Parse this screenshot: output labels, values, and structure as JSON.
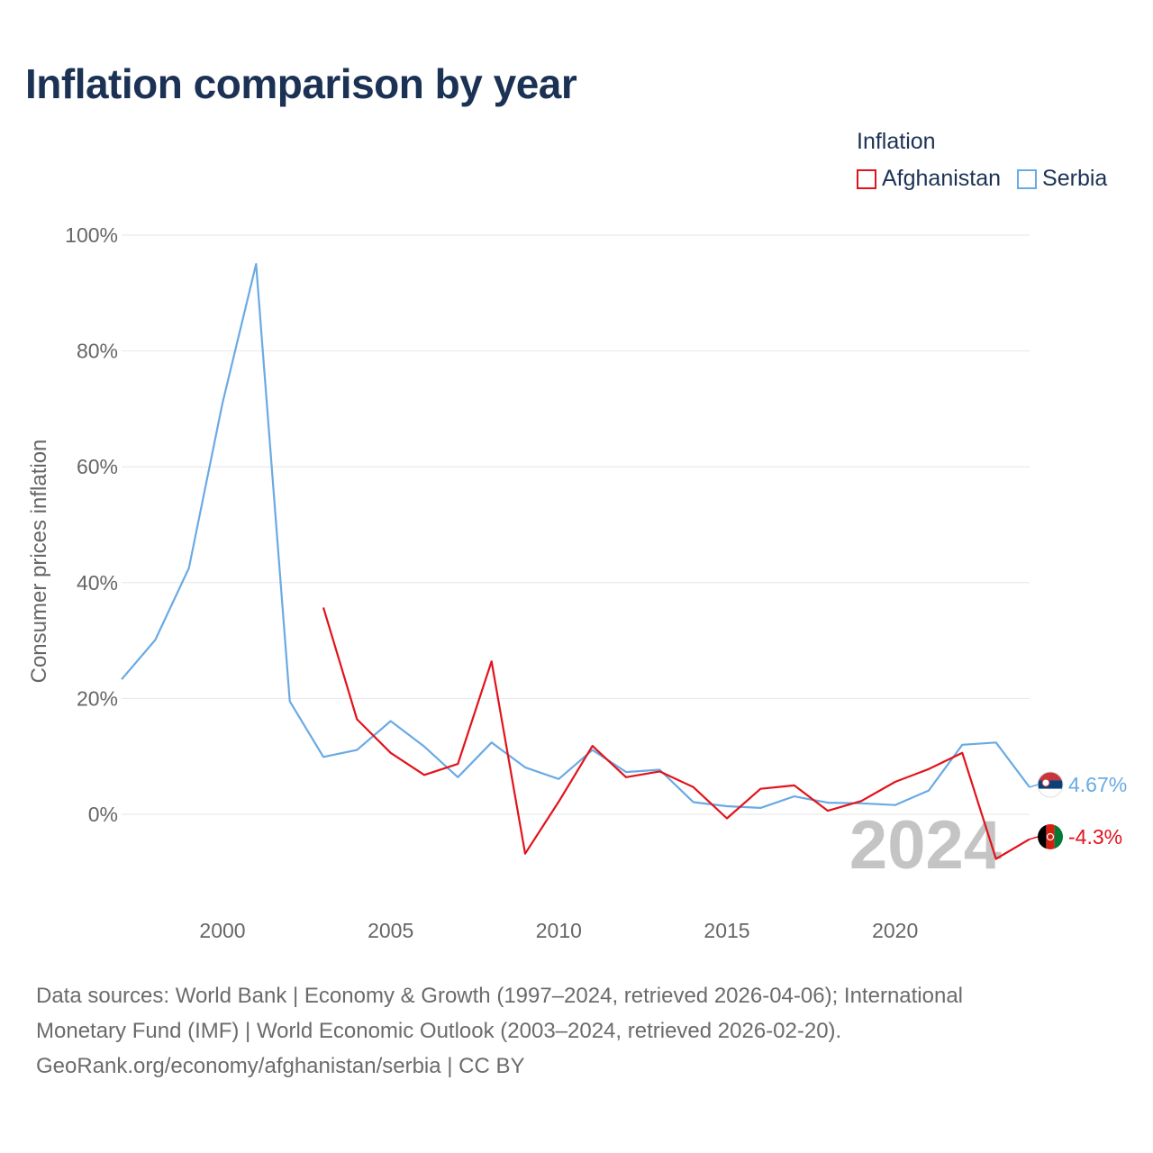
{
  "title": "Inflation comparison by year",
  "legend": {
    "title": "Inflation",
    "items": [
      {
        "label": "Afghanistan",
        "color": "#e3121b"
      },
      {
        "label": "Serbia",
        "color": "#6aaae4"
      }
    ]
  },
  "year_watermark": "2024",
  "end_labels": {
    "serbia": "4.67%",
    "afghanistan": "-4.3%"
  },
  "source": {
    "line1": "Data sources: World Bank | Economy & Growth (1997–2024, retrieved 2026-04-06); International",
    "line2": "Monetary Fund (IMF) | World Economic Outlook (2003–2024, retrieved 2026-02-20).",
    "line3": "GeoRank.org/economy/afghanistan/serbia | CC BY"
  },
  "chart_data": {
    "type": "line",
    "title": "Inflation comparison by year",
    "xlabel": "",
    "ylabel": "Consumer prices inflation",
    "xlim": [
      1997,
      2024
    ],
    "ylim": [
      -15,
      100
    ],
    "x_ticks": [
      2000,
      2005,
      2010,
      2015,
      2020
    ],
    "y_ticks": [
      {
        "value": 0,
        "label": "0%"
      },
      {
        "value": 20,
        "label": "20%"
      },
      {
        "value": 40,
        "label": "40%"
      },
      {
        "value": 60,
        "label": "60%"
      },
      {
        "value": 80,
        "label": "80%"
      },
      {
        "value": 100,
        "label": "100%"
      }
    ],
    "grid": true,
    "series": [
      {
        "name": "Serbia",
        "color": "#6aaae4",
        "x": [
          1997,
          1998,
          1999,
          2000,
          2001,
          2002,
          2003,
          2004,
          2005,
          2006,
          2007,
          2008,
          2009,
          2010,
          2011,
          2012,
          2013,
          2014,
          2015,
          2016,
          2017,
          2018,
          2019,
          2020,
          2021,
          2022,
          2023,
          2024
        ],
        "y": [
          23.3,
          30.1,
          42.5,
          71.0,
          95.0,
          19.5,
          9.9,
          11.1,
          16.1,
          11.7,
          6.4,
          12.4,
          8.1,
          6.1,
          11.1,
          7.3,
          7.7,
          2.1,
          1.4,
          1.1,
          3.1,
          2.0,
          1.9,
          1.6,
          4.1,
          12.0,
          12.4,
          4.67
        ]
      },
      {
        "name": "Afghanistan",
        "color": "#e3121b",
        "x": [
          2003,
          2004,
          2005,
          2006,
          2007,
          2008,
          2009,
          2010,
          2011,
          2012,
          2013,
          2014,
          2015,
          2016,
          2017,
          2018,
          2019,
          2020,
          2021,
          2022,
          2023,
          2024
        ],
        "y": [
          35.7,
          16.4,
          10.6,
          6.8,
          8.7,
          26.4,
          -6.8,
          2.2,
          11.8,
          6.4,
          7.4,
          4.7,
          -0.7,
          4.4,
          5.0,
          0.6,
          2.3,
          5.6,
          7.8,
          10.6,
          -7.7,
          -4.3
        ]
      }
    ]
  }
}
